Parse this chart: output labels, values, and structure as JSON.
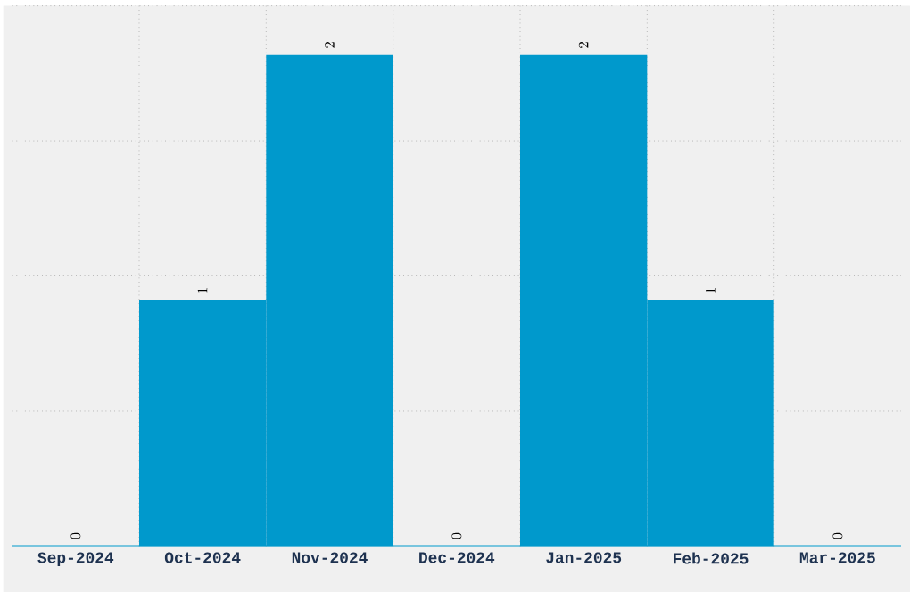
{
  "chart_data": {
    "type": "bar",
    "categories": [
      "Sep-2024",
      "Oct-2024",
      "Nov-2024",
      "Dec-2024",
      "Jan-2025",
      "Feb-2025",
      "Mar-2025"
    ],
    "values": [
      0,
      1,
      2,
      0,
      2,
      1,
      0
    ],
    "color": "#0099cc",
    "ylim": [
      0,
      2.2
    ],
    "yticks": [
      {
        "value": 0.55,
        "label": null
      },
      {
        "value": 1.1,
        "label": null
      },
      {
        "value": 1.65,
        "label": null
      },
      {
        "value": 2.2,
        "label": null
      }
    ],
    "tick_labels": "x",
    "grid": true,
    "data_labels": true
  }
}
